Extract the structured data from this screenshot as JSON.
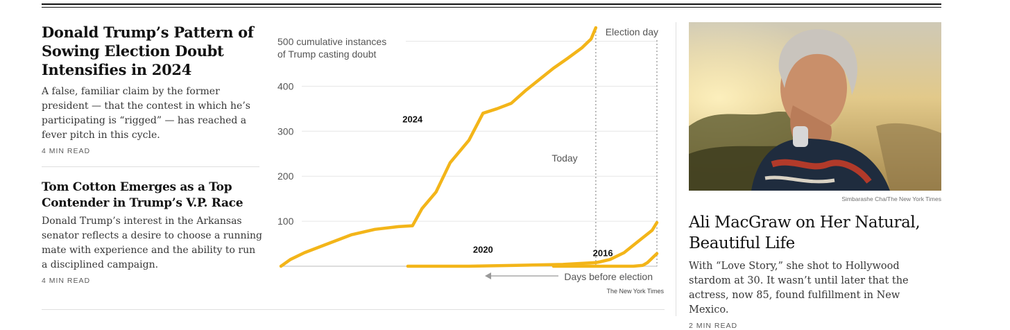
{
  "stories": {
    "main": {
      "headline": "Donald Trump’s Pattern of Sowing Election Doubt Intensifies in 2024",
      "summary": "A false, familiar claim by the former president — that the contest in which he’s participating is “rigged” — has reached a fever pitch in this cycle.",
      "read_time": "4 MIN READ"
    },
    "second": {
      "headline": "Tom Cotton Emerges as a Top Contender in Trump’s V.P. Race",
      "summary": "Donald Trump’s interest in the Arkansas senator reflects a desire to choose a running mate with experience and the ability to run a disciplined campaign.",
      "read_time": "4 MIN READ"
    },
    "right": {
      "photo_credit": "Simbarashe Cha/The New York Times",
      "headline": "Ali MacGraw on Her Natural, Beautiful Life",
      "summary": "With “Love Story,” she shot to Hollywood stardom at 30. It wasn’t until later that the actress, now 85, found fulfillment in New Mexico.",
      "read_time": "2 MIN READ"
    }
  },
  "chart_data": {
    "type": "line",
    "ylabel_line1": "500 cumulative instances",
    "ylabel_line2": "of Trump casting doubt",
    "yticks": [
      "400",
      "300",
      "200",
      "100"
    ],
    "ytick_values": [
      400,
      300,
      200,
      100
    ],
    "ylim": [
      0,
      530
    ],
    "xlabel": "Days before election",
    "annotations": {
      "election_day": "Election day",
      "today": "Today"
    },
    "source": "The New York Times",
    "series_color": "#f3b519",
    "series": [
      {
        "name": "2024",
        "x": [
          -800,
          -780,
          -750,
          -700,
          -650,
          -600,
          -550,
          -520,
          -500,
          -470,
          -440,
          -400,
          -370,
          -340,
          -310,
          -280,
          -250,
          -220,
          -190,
          -160,
          -140,
          -130
        ],
        "y": [
          0,
          15,
          30,
          50,
          70,
          82,
          88,
          90,
          128,
          165,
          230,
          280,
          340,
          350,
          362,
          390,
          415,
          440,
          462,
          485,
          505,
          530
        ]
      },
      {
        "name": "2020",
        "x": [
          -530,
          -400,
          -300,
          -200,
          -130,
          -120,
          -100,
          -70,
          -40,
          -10,
          0
        ],
        "y": [
          0,
          0,
          2,
          4,
          8,
          10,
          15,
          30,
          55,
          80,
          97
        ]
      },
      {
        "name": "2016",
        "x": [
          -220,
          -50,
          -30,
          -20,
          -10,
          0
        ],
        "y": [
          0,
          0,
          2,
          8,
          18,
          28
        ]
      }
    ]
  }
}
